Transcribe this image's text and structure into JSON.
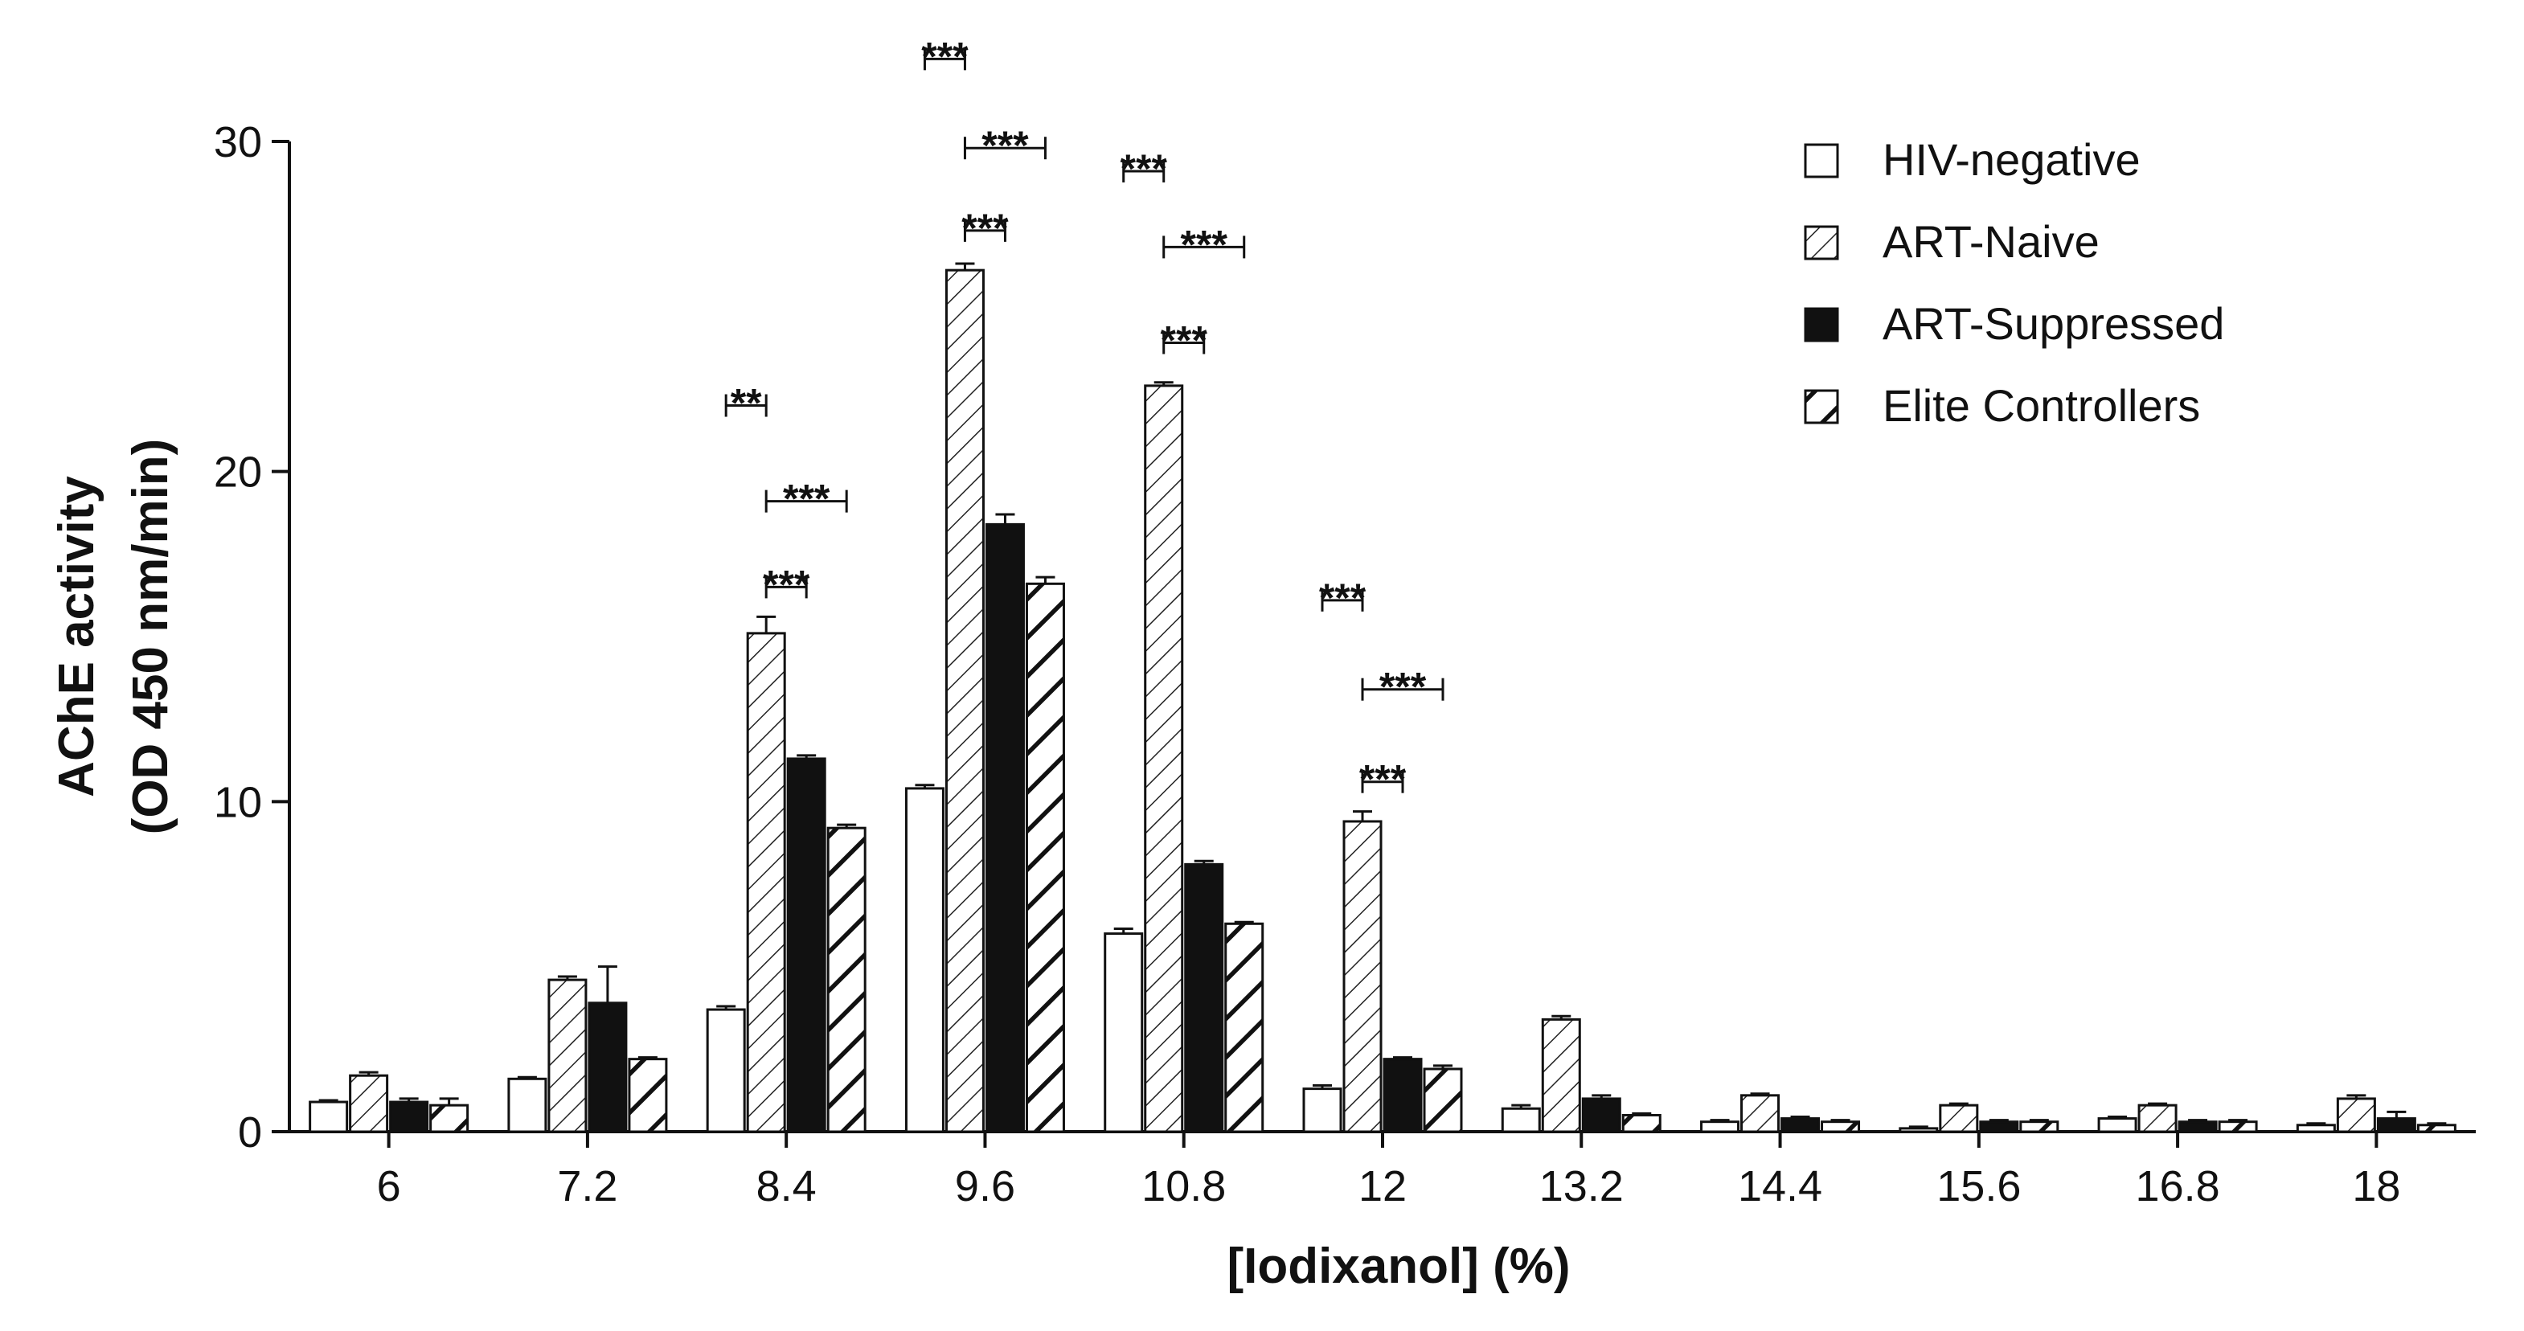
{
  "chart_data": {
    "type": "bar",
    "title": "",
    "xlabel": "[Iodixanol] (%)",
    "ylabel_lines": [
      "AChE activity",
      "(OD 450 nm/min)"
    ],
    "ylim": [
      0,
      30
    ],
    "yticks": [
      0,
      10,
      20,
      30
    ],
    "categories": [
      "6",
      "7.2",
      "8.4",
      "9.6",
      "10.8",
      "12",
      "13.2",
      "14.4",
      "15.6",
      "16.8",
      "18"
    ],
    "series": [
      {
        "name": "HIV-negative",
        "pattern": "empty",
        "values": [
          0.9,
          1.6,
          3.7,
          10.4,
          6.0,
          1.3,
          0.7,
          0.3,
          0.1,
          0.4,
          0.2
        ],
        "errors": [
          0.05,
          0.05,
          0.1,
          0.1,
          0.15,
          0.1,
          0.1,
          0.05,
          0.05,
          0.05,
          0.05
        ]
      },
      {
        "name": "ART-Naive",
        "pattern": "light-hatch",
        "values": [
          1.7,
          4.6,
          15.1,
          26.1,
          22.6,
          9.4,
          3.4,
          1.1,
          0.8,
          0.8,
          1.0
        ],
        "errors": [
          0.1,
          0.1,
          0.5,
          0.2,
          0.1,
          0.3,
          0.1,
          0.05,
          0.05,
          0.05,
          0.1
        ]
      },
      {
        "name": "ART-Suppressed",
        "pattern": "solid",
        "values": [
          0.9,
          3.9,
          11.3,
          18.4,
          8.1,
          2.2,
          1.0,
          0.4,
          0.3,
          0.3,
          0.4
        ],
        "errors": [
          0.1,
          1.1,
          0.1,
          0.3,
          0.1,
          0.05,
          0.1,
          0.05,
          0.05,
          0.05,
          0.2
        ]
      },
      {
        "name": "Elite Controllers",
        "pattern": "heavy-hatch",
        "values": [
          0.8,
          2.2,
          9.2,
          16.6,
          6.3,
          1.9,
          0.5,
          0.3,
          0.3,
          0.3,
          0.2
        ],
        "errors": [
          0.2,
          0.05,
          0.1,
          0.2,
          0.05,
          0.1,
          0.05,
          0.05,
          0.05,
          0.05,
          0.05
        ]
      }
    ],
    "legend_position": "top-right",
    "significance": [
      {
        "category": 2,
        "from": 0,
        "to": 1,
        "label": "**",
        "at_value": 22.0
      },
      {
        "category": 2,
        "from": 1,
        "to": 3,
        "label": "***",
        "at_value": 19.1
      },
      {
        "category": 2,
        "from": 1,
        "to": 2,
        "label": "***",
        "at_value": 16.5
      },
      {
        "category": 3,
        "from": 0,
        "to": 1,
        "label": "***",
        "at_value": 32.5
      },
      {
        "category": 3,
        "from": 1,
        "to": 3,
        "label": "***",
        "at_value": 29.8
      },
      {
        "category": 3,
        "from": 1,
        "to": 2,
        "label": "***",
        "at_value": 27.3
      },
      {
        "category": 4,
        "from": 0,
        "to": 1,
        "label": "***",
        "at_value": 29.1
      },
      {
        "category": 4,
        "from": 1,
        "to": 3,
        "label": "***",
        "at_value": 26.8
      },
      {
        "category": 4,
        "from": 1,
        "to": 2,
        "label": "***",
        "at_value": 23.9
      },
      {
        "category": 5,
        "from": 0,
        "to": 1,
        "label": "***",
        "at_value": 16.1
      },
      {
        "category": 5,
        "from": 1,
        "to": 3,
        "label": "***",
        "at_value": 13.4
      },
      {
        "category": 5,
        "from": 1,
        "to": 2,
        "label": "***",
        "at_value": 10.6
      }
    ]
  }
}
